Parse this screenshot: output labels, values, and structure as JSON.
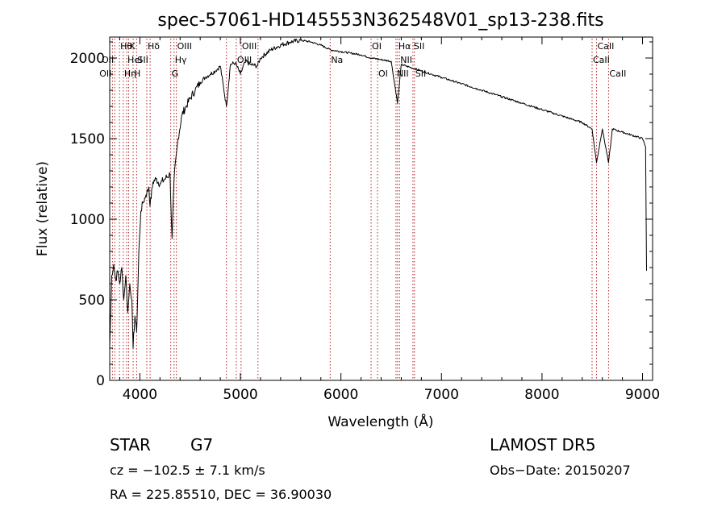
{
  "chart_data": {
    "type": "line",
    "title": "spec-57061-HD145553N362548V01_sp13-238.fits",
    "xlabel": "Wavelength (Å)",
    "ylabel": "Flux (relative)",
    "xlim": [
      3700,
      9100
    ],
    "ylim": [
      0,
      2130
    ],
    "xticks": [
      4000,
      5000,
      6000,
      7000,
      8000,
      9000
    ],
    "yticks": [
      0,
      500,
      1000,
      1500,
      2000
    ],
    "grid": false,
    "line_color": "#000000",
    "marker_color": "#b22222",
    "series": [
      {
        "x": [
          3700,
          3720,
          3740,
          3760,
          3780,
          3800,
          3820,
          3840,
          3860,
          3880,
          3900,
          3920,
          3933,
          3950,
          3968,
          3990,
          4010,
          4030,
          4060,
          4090,
          4101,
          4130,
          4160,
          4200,
          4250,
          4300,
          4320,
          4340,
          4380,
          4420,
          4460,
          4500,
          4550,
          4600,
          4650,
          4700,
          4750,
          4800,
          4861,
          4900,
          4950,
          5000,
          5050,
          5100,
          5167,
          5200,
          5300,
          5400,
          5500,
          5600,
          5700,
          5800,
          5900,
          6000,
          6100,
          6200,
          6300,
          6400,
          6500,
          6563,
          6600,
          6700,
          6800,
          6900,
          7000,
          7100,
          7200,
          7300,
          7400,
          7500,
          7600,
          7700,
          7800,
          7900,
          8000,
          8100,
          8200,
          8300,
          8400,
          8498,
          8542,
          8600,
          8662,
          8700,
          8800,
          8900,
          9000,
          9030,
          9040
        ],
        "values": [
          200,
          650,
          720,
          620,
          680,
          600,
          700,
          500,
          650,
          420,
          600,
          500,
          200,
          400,
          300,
          800,
          1050,
          1100,
          1150,
          1200,
          1080,
          1230,
          1250,
          1220,
          1250,
          1280,
          880,
          1250,
          1500,
          1650,
          1700,
          1750,
          1800,
          1850,
          1880,
          1900,
          1920,
          1950,
          1700,
          1960,
          1970,
          1900,
          1980,
          1960,
          1950,
          2000,
          2050,
          2080,
          2100,
          2110,
          2100,
          2080,
          2050,
          2040,
          2030,
          2020,
          2000,
          1990,
          1980,
          1720,
          1960,
          1940,
          1920,
          1900,
          1880,
          1860,
          1840,
          1820,
          1800,
          1780,
          1760,
          1740,
          1720,
          1700,
          1680,
          1660,
          1640,
          1620,
          1600,
          1560,
          1350,
          1560,
          1350,
          1560,
          1540,
          1520,
          1500,
          1450,
          680
        ]
      }
    ],
    "lines": [
      {
        "x": 3727,
        "labels": [
          "OII"
        ],
        "row": 2,
        "anchor": "end"
      },
      {
        "x": 3750,
        "labels": [
          "OII"
        ],
        "row": 1,
        "anchor": "end"
      },
      {
        "x": 3797,
        "labels": [
          "Hθ"
        ],
        "row": 0
      },
      {
        "x": 3835,
        "labels": [
          "Hη"
        ],
        "row": 2
      },
      {
        "x": 3869,
        "labels": [
          "HeI"
        ],
        "row": 1
      },
      {
        "x": 3889,
        "labels": [
          "K"
        ],
        "row": 0
      },
      {
        "x": 3933,
        "labels": [
          "H"
        ],
        "row": 2
      },
      {
        "x": 3968,
        "labels": [
          "SII"
        ],
        "row": 1
      },
      {
        "x": 4069,
        "labels": [
          "Hδ"
        ],
        "row": 0
      },
      {
        "x": 4102,
        "labels": [],
        "row": 0
      },
      {
        "x": 4307,
        "labels": [
          "G"
        ],
        "row": 2
      },
      {
        "x": 4340,
        "labels": [
          "Hγ"
        ],
        "row": 1
      },
      {
        "x": 4363,
        "labels": [
          "OIII"
        ],
        "row": 0
      },
      {
        "x": 4861,
        "labels": [],
        "row": 0
      },
      {
        "x": 4959,
        "labels": [
          "OIII"
        ],
        "row": 1
      },
      {
        "x": 5007,
        "labels": [
          "OIII"
        ],
        "row": 0
      },
      {
        "x": 5175,
        "labels": [],
        "row": 0
      },
      {
        "x": 5893,
        "labels": [
          "Na"
        ],
        "row": 1
      },
      {
        "x": 6300,
        "labels": [
          "OI"
        ],
        "row": 0
      },
      {
        "x": 6364,
        "labels": [
          "OI"
        ],
        "row": 2
      },
      {
        "x": 6548,
        "labels": [
          "NII"
        ],
        "row": 2
      },
      {
        "x": 6563,
        "labels": [
          "Hα"
        ],
        "row": 0
      },
      {
        "x": 6583,
        "labels": [
          "NII"
        ],
        "row": 1
      },
      {
        "x": 6716,
        "labels": [
          "SII"
        ],
        "row": 0
      },
      {
        "x": 6731,
        "labels": [
          "SII"
        ],
        "row": 2
      },
      {
        "x": 8498,
        "labels": [
          "CaII"
        ],
        "row": 1
      },
      {
        "x": 8542,
        "labels": [
          "CaII"
        ],
        "row": 0
      },
      {
        "x": 8662,
        "labels": [
          "CaII"
        ],
        "row": 2
      }
    ]
  },
  "info": {
    "object_type": "STAR",
    "subclass": "G7",
    "survey": "LAMOST DR5",
    "velocity": "cz = −102.5 ± 7.1 km/s",
    "obs_date": "Obs−Date: 20150207",
    "coords": "RA = 225.85510, DEC =  36.90030"
  }
}
